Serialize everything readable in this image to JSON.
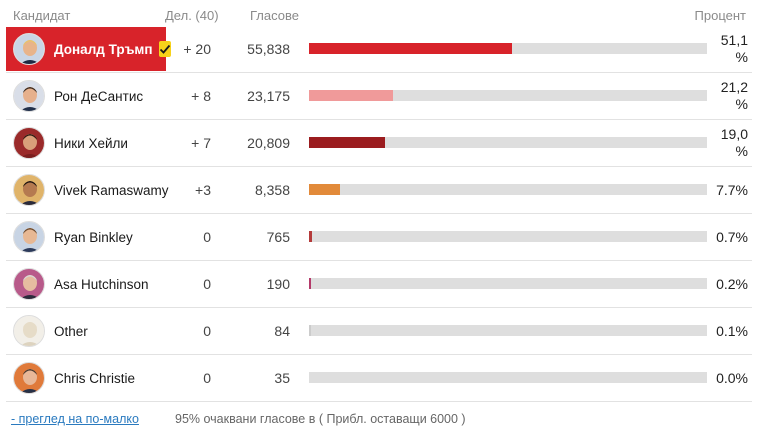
{
  "header": {
    "candidate": "Кандидат",
    "delegates": "Дел. (40)",
    "votes": "Гласове",
    "percent": "Процент"
  },
  "rows": [
    {
      "name": "Доналд Тръмп",
      "delegates": "+ 20",
      "votes": "55,838",
      "percent": "51,1 %",
      "share": 51.1,
      "color": "#d8232a",
      "winner": true,
      "avatar": "trump"
    },
    {
      "name": "Рон ДеСантис",
      "delegates": "+ 8",
      "votes": "23,175",
      "percent": "21,2 %",
      "share": 21.2,
      "color": "#f09a9a",
      "winner": false,
      "avatar": "desantis"
    },
    {
      "name": "Ники Хейли",
      "delegates": "+ 7",
      "votes": "20,809",
      "percent": "19,0 %",
      "share": 19.0,
      "color": "#9b1c1f",
      "winner": false,
      "avatar": "haley"
    },
    {
      "name": "Vivek Ramaswamy",
      "delegates": "+3",
      "votes": "8,358",
      "percent": "7.7%",
      "share": 7.7,
      "color": "#e28a3a",
      "winner": false,
      "avatar": "ramaswamy"
    },
    {
      "name": "Ryan Binkley",
      "delegates": "0",
      "votes": "765",
      "percent": "0.7%",
      "share": 0.7,
      "color": "#b43a3a",
      "winner": false,
      "avatar": "binkley"
    },
    {
      "name": "Asa Hutchinson",
      "delegates": "0",
      "votes": "190",
      "percent": "0.2%",
      "share": 0.2,
      "color": "#b43a6a",
      "winner": false,
      "avatar": "hutchinson"
    },
    {
      "name": "Other",
      "delegates": "0",
      "votes": "84",
      "percent": "0.1%",
      "share": 0.1,
      "color": "#cccccc",
      "winner": false,
      "avatar": "other"
    },
    {
      "name": "Chris Christie",
      "delegates": "0",
      "votes": "35",
      "percent": "0.0%",
      "share": 0.0,
      "color": "#cccccc",
      "winner": false,
      "avatar": "christie"
    }
  ],
  "footer": {
    "less_link": "- преглед на по-малко",
    "note": "95% очаквани гласове в ( Прибл. оставащи 6000 )"
  },
  "icons": {
    "winner_check": "check-icon"
  }
}
